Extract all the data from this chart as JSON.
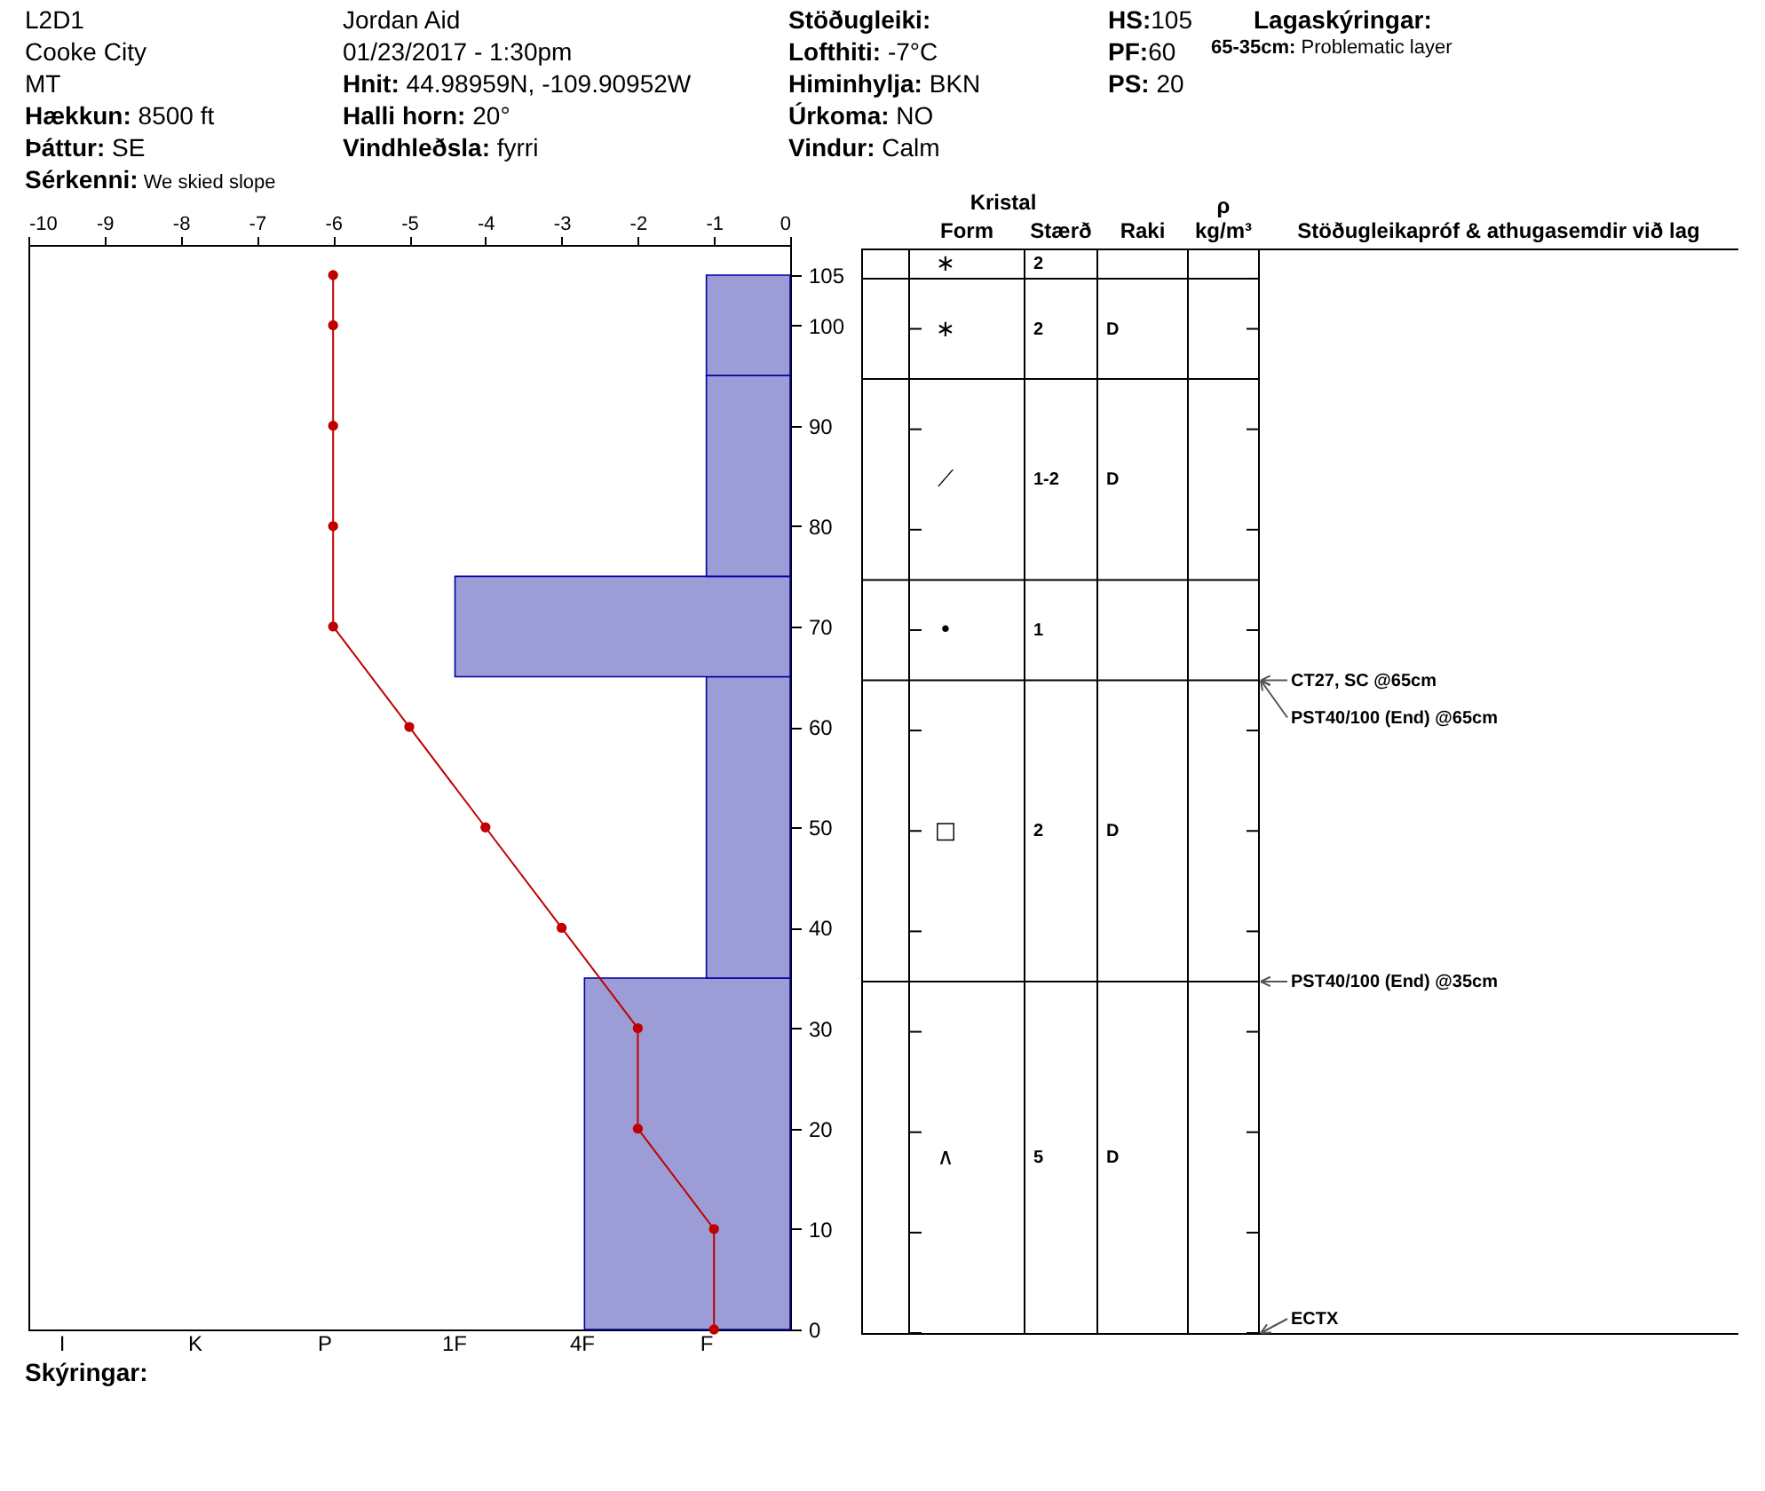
{
  "chart_data": [
    {
      "type": "histogram",
      "orientation": "horizontal",
      "xlim": [
        -10,
        0
      ],
      "xticks": [
        -10,
        -9,
        -8,
        -7,
        -6,
        -5,
        -4,
        -3,
        -2,
        -1,
        0
      ],
      "ylim": [
        0,
        108
      ],
      "yticks": [
        0,
        10,
        20,
        30,
        40,
        50,
        60,
        70,
        80,
        90,
        100,
        105
      ],
      "marker": "circle",
      "series": [
        {
          "type": "histogram",
          "color": "#9c9cd6",
          "bins": [
            0,
            35,
            65,
            75,
            95,
            105
          ],
          "values": [
            -2.7,
            -1.1,
            -4.4,
            -1.1,
            -1.1
          ]
        },
        {
          "type": "line",
          "color": "#c00000",
          "x": [
            105,
            100,
            90,
            80,
            70,
            60,
            50,
            40,
            30,
            20,
            10,
            0
          ],
          "values": [
            -6,
            -6,
            -6,
            -6,
            -6,
            -5,
            -4,
            -3,
            -2,
            -2,
            -1,
            -1
          ]
        }
      ],
      "annotations": [
        "L2D1",
        "Cooke City",
        "MT",
        "Hækkun: 8500 ft",
        "Þáttur: SE",
        "Sérkenni: We skied slope",
        "Jordan Aid",
        "01/23/2017 - 1:30pm",
        "Hnit: 44.98959N, -109.90952W",
        "Halli horn: 20°",
        "Vindhleðsla: fyrri",
        "Stöðugleiki:",
        "Lofthiti: -7°C",
        "Himinhylja: BKN",
        "Úrkoma: NO",
        "Vindur: Calm",
        "HS:105",
        "PF:60",
        "PS: 20",
        "Lagaskýringar:",
        "65-35cm: Problematic layer",
        "I",
        "K",
        "P",
        "1F",
        "4F",
        "F",
        "Skýringar:"
      ]
    },
    {
      "type": "other",
      "title": "Kristal",
      "categories": [
        "Form",
        "Stærð",
        "Raki",
        "ρ\nkg/m³",
        "Stöðugleikapróf & athugasemdir við lag"
      ],
      "cell_labels": [
        [
          "∗",
          "2",
          null,
          null
        ],
        [
          "∗",
          "2",
          "D",
          null
        ],
        [
          "⟋",
          "1-2",
          "D",
          null
        ],
        [
          "•",
          "1",
          null,
          null
        ],
        [
          "□",
          "2",
          "D",
          null
        ],
        [
          "∧",
          "5",
          "D",
          null
        ]
      ],
      "annotations": [
        "CT27, SC @65cm",
        "PST40/100 (End) @65cm",
        "PST40/100 (End) @35cm",
        "ECTX"
      ]
    }
  ]
}
